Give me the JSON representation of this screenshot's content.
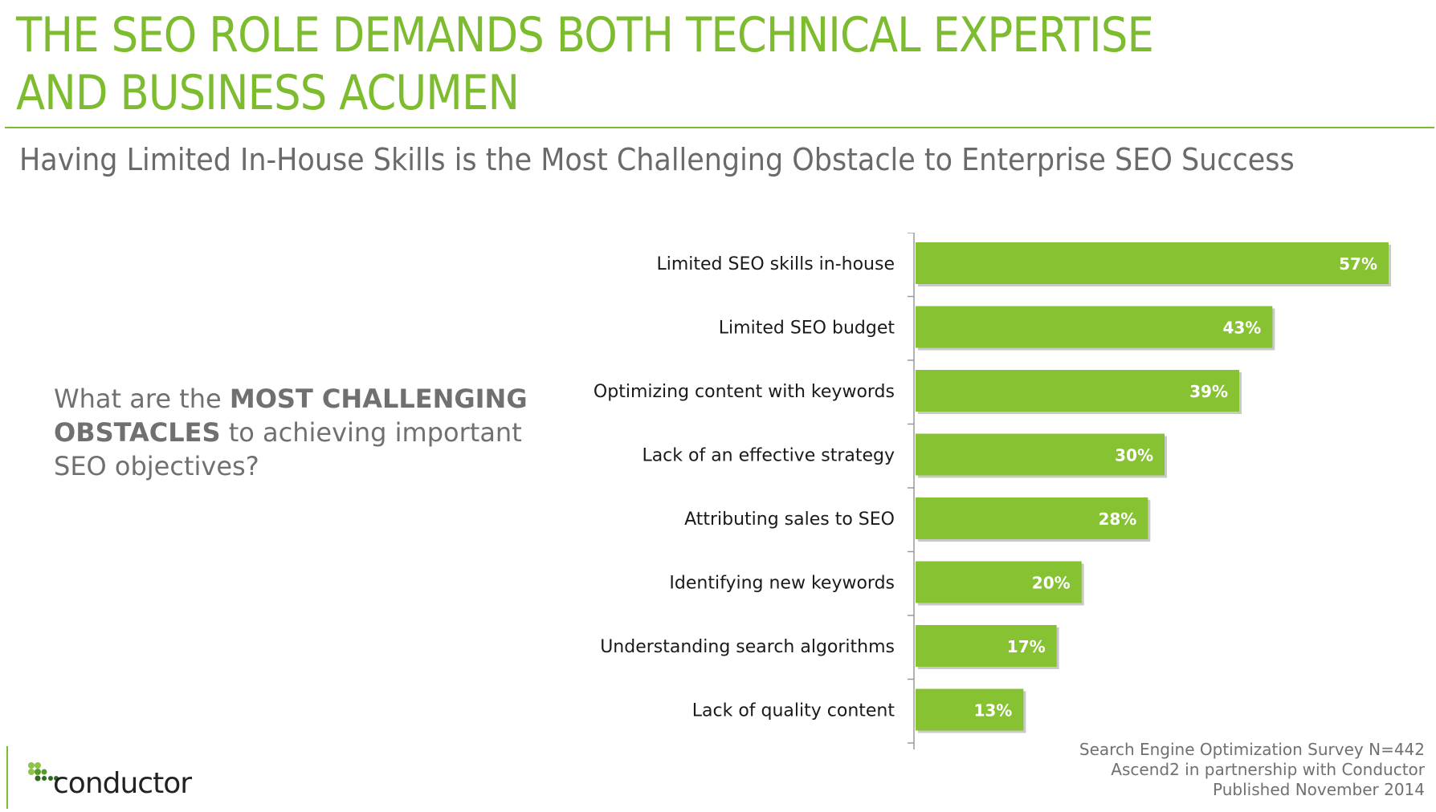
{
  "slide": {
    "title": "THE SEO ROLE DEMANDS BOTH TECHNICAL EXPERTISE AND BUSINESS ACUMEN",
    "subtitle": "Having Limited In-House Skills is the Most Challenging Obstacle to Enterprise SEO Success",
    "question": {
      "part1": "What are the ",
      "bold": "MOST CHALLENGING OBSTACLES",
      "part2": " to achieving important SEO objectives?"
    },
    "source": {
      "line1": "Search Engine Optimization Survey N=442",
      "line2": "Ascend2 in partnership with Conductor",
      "line3": "Published November 2014"
    },
    "logo": {
      "text": "conductor",
      "icon": "conductor-logo-icon"
    }
  },
  "colors": {
    "accent": "#7dbb2f",
    "bar": "#86c232",
    "subtitle_text": "#6a6a6a"
  },
  "chart_data": {
    "type": "bar",
    "orientation": "horizontal",
    "categories": [
      "Limited SEO skills in-house",
      "Limited SEO budget",
      "Optimizing content with keywords",
      "Lack of an effective strategy",
      "Attributing sales to SEO",
      "Identifying new keywords",
      "Understanding search algorithms",
      "Lack of quality content"
    ],
    "values": [
      57,
      43,
      39,
      30,
      28,
      20,
      17,
      13
    ],
    "data_labels": [
      "57%",
      "43%",
      "39%",
      "30%",
      "28%",
      "20%",
      "17%",
      "13%"
    ],
    "unit": "%",
    "xlim": [
      0,
      60
    ],
    "grid": false,
    "legend": "none"
  }
}
